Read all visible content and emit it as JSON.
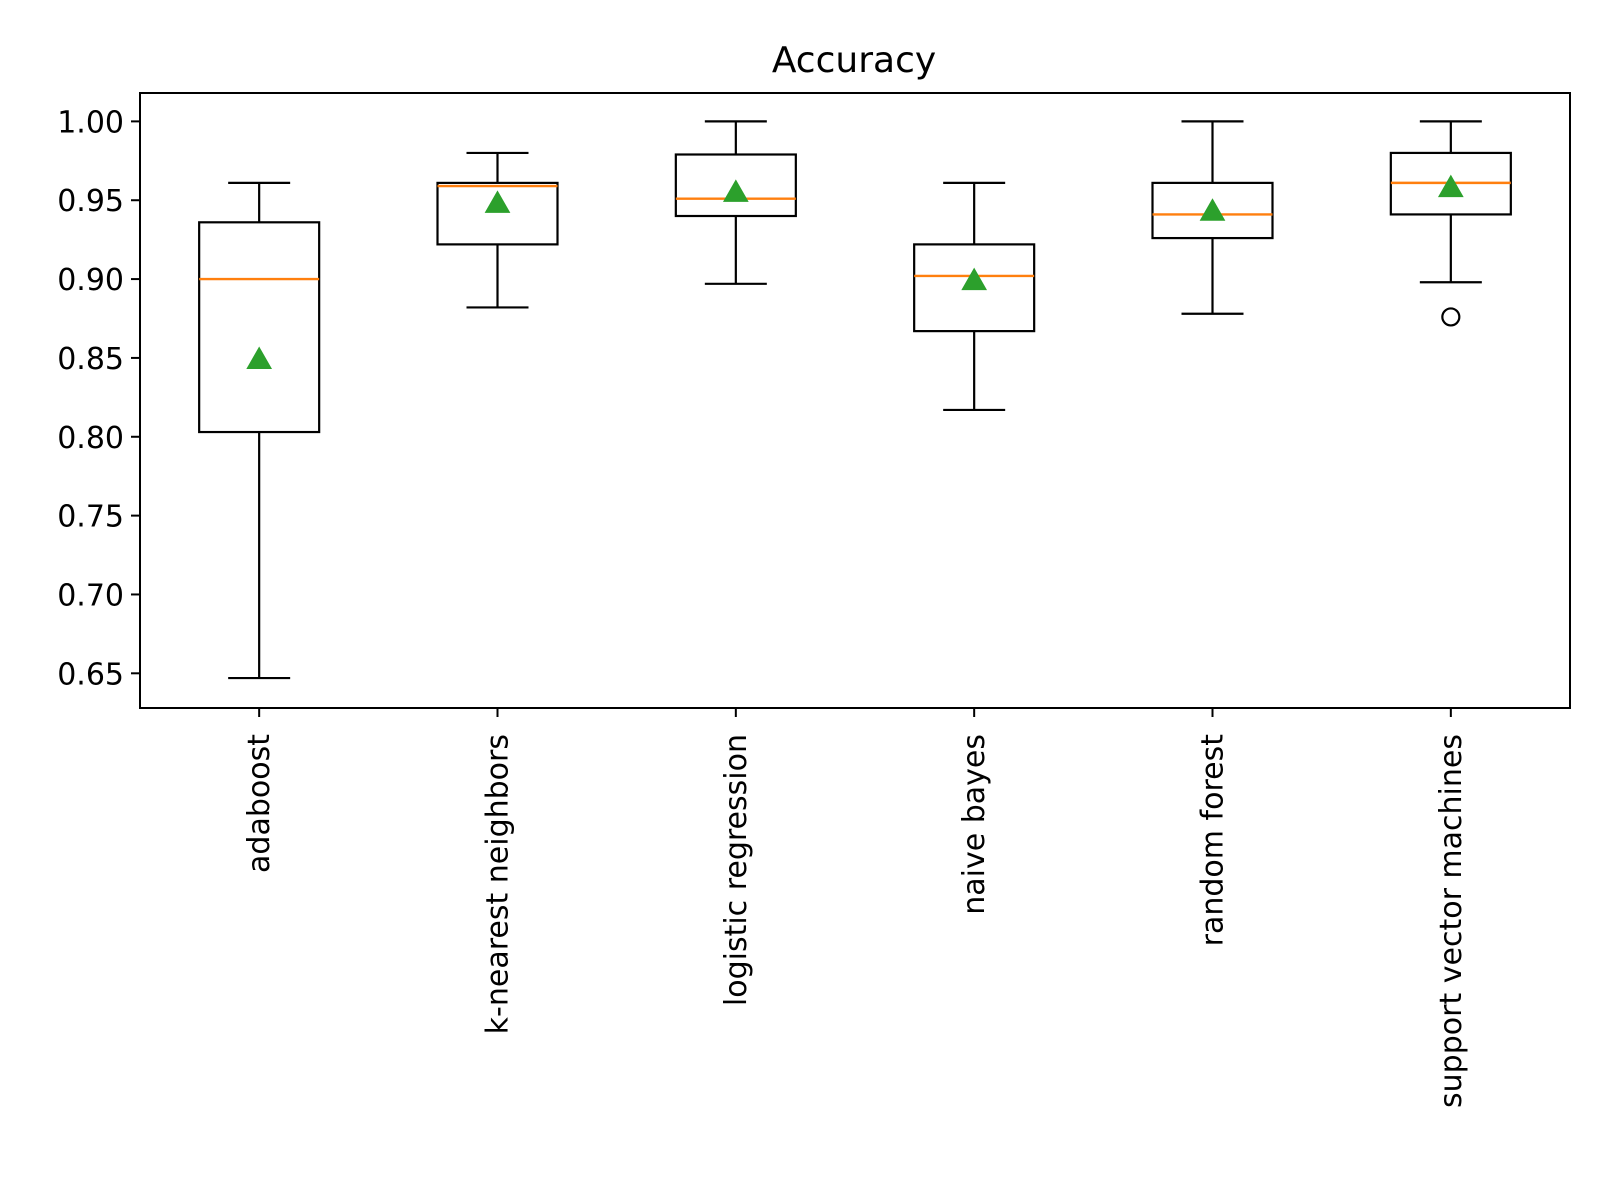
{
  "chart_data": {
    "type": "box",
    "title": "Accuracy",
    "xlabel": "",
    "ylabel": "",
    "ylim": [
      0.628,
      1.018
    ],
    "yticks": [
      0.65,
      0.7,
      0.75,
      0.8,
      0.85,
      0.9,
      0.95,
      1.0
    ],
    "ytick_labels": [
      "0.65",
      "0.70",
      "0.75",
      "0.80",
      "0.85",
      "0.90",
      "0.95",
      "1.00"
    ],
    "categories": [
      "adaboost",
      "k-nearest neighbors",
      "logistic regression",
      "naive bayes",
      "random forest",
      "support vector machines"
    ],
    "boxes": [
      {
        "whisker_low": 0.647,
        "q1": 0.803,
        "median": 0.9,
        "q3": 0.936,
        "whisker_high": 0.961,
        "mean": 0.849,
        "outliers": []
      },
      {
        "whisker_low": 0.882,
        "q1": 0.922,
        "median": 0.959,
        "q3": 0.961,
        "whisker_high": 0.98,
        "mean": 0.948,
        "outliers": []
      },
      {
        "whisker_low": 0.897,
        "q1": 0.94,
        "median": 0.951,
        "q3": 0.979,
        "whisker_high": 1.0,
        "mean": 0.955,
        "outliers": []
      },
      {
        "whisker_low": 0.817,
        "q1": 0.867,
        "median": 0.902,
        "q3": 0.922,
        "whisker_high": 0.961,
        "mean": 0.899,
        "outliers": []
      },
      {
        "whisker_low": 0.878,
        "q1": 0.926,
        "median": 0.941,
        "q3": 0.961,
        "whisker_high": 1.0,
        "mean": 0.943,
        "outliers": []
      },
      {
        "whisker_low": 0.898,
        "q1": 0.941,
        "median": 0.961,
        "q3": 0.98,
        "whisker_high": 1.0,
        "mean": 0.958,
        "outliers": [
          0.876
        ]
      }
    ],
    "grid": false,
    "colors": {
      "box": "#000000",
      "median": "#ff7f0e",
      "mean": "#2ca02c"
    }
  }
}
